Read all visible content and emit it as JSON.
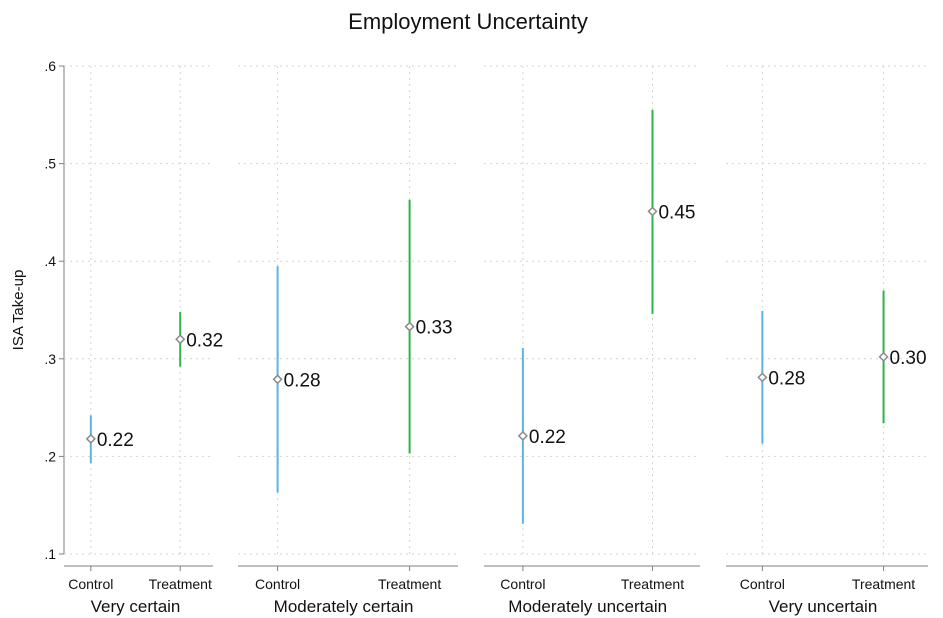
{
  "chart_data": {
    "type": "scatter",
    "title": "Employment Uncertainty",
    "xlabel": "",
    "ylabel": "ISA Take-up",
    "ylim": [
      0.1,
      0.6
    ],
    "yticks": [
      {
        "value": 0.1,
        "label": ".1"
      },
      {
        "value": 0.2,
        "label": ".2"
      },
      {
        "value": 0.3,
        "label": ".3"
      },
      {
        "value": 0.4,
        "label": ".4"
      },
      {
        "value": 0.5,
        "label": ".5"
      },
      {
        "value": 0.6,
        "label": ".6"
      }
    ],
    "grid": true,
    "groups": [
      "Control",
      "Treatment"
    ],
    "colors": {
      "Control": "#5ab4e5",
      "Treatment": "#2db34a",
      "marker": "#8a8a8a"
    },
    "panels": [
      {
        "label": "Very certain",
        "points": [
          {
            "group": "Control",
            "value": 0.218,
            "ci_low": 0.193,
            "ci_high": 0.242,
            "label": "0.22"
          },
          {
            "group": "Treatment",
            "value": 0.32,
            "ci_low": 0.292,
            "ci_high": 0.348,
            "label": "0.32"
          }
        ]
      },
      {
        "label": "Moderately certain",
        "points": [
          {
            "group": "Control",
            "value": 0.279,
            "ci_low": 0.163,
            "ci_high": 0.395,
            "label": "0.28"
          },
          {
            "group": "Treatment",
            "value": 0.333,
            "ci_low": 0.203,
            "ci_high": 0.463,
            "label": "0.33"
          }
        ]
      },
      {
        "label": "Moderately uncertain",
        "points": [
          {
            "group": "Control",
            "value": 0.221,
            "ci_low": 0.131,
            "ci_high": 0.311,
            "label": "0.22"
          },
          {
            "group": "Treatment",
            "value": 0.451,
            "ci_low": 0.346,
            "ci_high": 0.555,
            "label": "0.45"
          }
        ]
      },
      {
        "label": "Very uncertain",
        "points": [
          {
            "group": "Control",
            "value": 0.281,
            "ci_low": 0.213,
            "ci_high": 0.349,
            "label": "0.28"
          },
          {
            "group": "Treatment",
            "value": 0.302,
            "ci_low": 0.234,
            "ci_high": 0.37,
            "label": "0.30"
          }
        ]
      }
    ]
  }
}
